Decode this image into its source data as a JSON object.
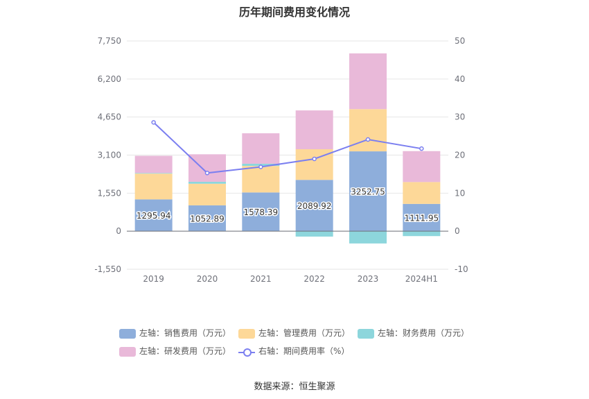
{
  "title": "历年期间费用变化情况",
  "source": "数据来源：恒生聚源",
  "chart_data": {
    "type": "bar",
    "stacked": true,
    "categories": [
      "2019",
      "2020",
      "2021",
      "2022",
      "2023",
      "2024H1"
    ],
    "left_axis": {
      "ticks": [
        "7,750",
        "6,200",
        "4,650",
        "3,100",
        "1,550",
        "0",
        "-1,550"
      ],
      "ylim": [
        -1550,
        7750
      ]
    },
    "right_axis": {
      "ticks": [
        "50",
        "40",
        "30",
        "20",
        "10",
        "0",
        "-10"
      ],
      "ylim": [
        -10,
        50
      ]
    },
    "series": [
      {
        "name": "左轴：销售费用（万元）",
        "axis": "left",
        "color": "#8eaedb",
        "values": [
          1295.94,
          1052.89,
          1578.39,
          2089.92,
          3252.75,
          1111.95
        ],
        "labels": [
          "1295.94",
          "1052.89",
          "1578.39",
          "2089.92",
          "3252.75",
          "1111.95"
        ]
      },
      {
        "name": "左轴：管理费用（万元）",
        "axis": "left",
        "color": "#fdd898",
        "values": [
          1050,
          880,
          1080,
          1250,
          1720,
          890
        ]
      },
      {
        "name": "左轴：财务费用（万元）",
        "axis": "left",
        "color": "#8dd6dc",
        "values": [
          25,
          80,
          90,
          -220,
          -500,
          -200
        ]
      },
      {
        "name": "左轴：研发费用（万元）",
        "axis": "left",
        "color": "#e9b9d9",
        "values": [
          700,
          1120,
          1240,
          1580,
          2270,
          1260
        ]
      },
      {
        "name": "右轴：期间费用率（%）",
        "axis": "right",
        "type": "line",
        "color": "#7b7ff0",
        "values": [
          28.6,
          15.3,
          16.9,
          19.0,
          24.1,
          21.7
        ]
      }
    ],
    "grid": true,
    "legend_position": "bottom"
  }
}
